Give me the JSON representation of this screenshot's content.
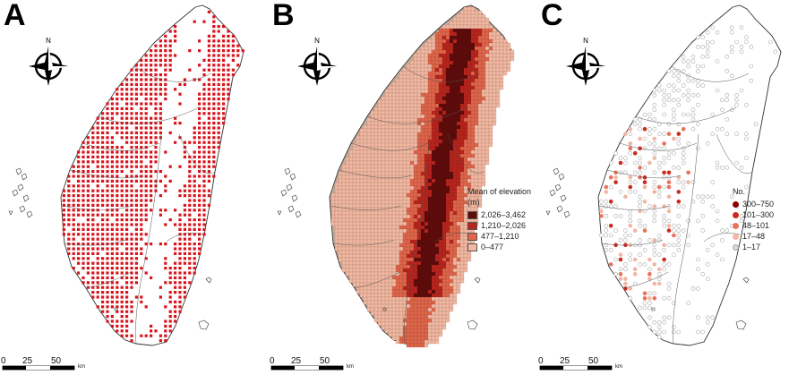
{
  "panels": [
    {
      "letter": "A",
      "compass_label": "N"
    },
    {
      "letter": "B",
      "compass_label": "N",
      "legend": {
        "title": "Mean of elevation (m)",
        "items": [
          {
            "label": "2,026–3,462",
            "color": "#5e0a0a"
          },
          {
            "label": "1,210–2,026",
            "color": "#b8231c"
          },
          {
            "label": "477–1,210",
            "color": "#e0654a"
          },
          {
            "label": "0–477",
            "color": "#f2b8a2"
          }
        ]
      }
    },
    {
      "letter": "C",
      "compass_label": "N",
      "legend": {
        "title": "No.",
        "items": [
          {
            "label": "300–750",
            "color": "#8b0000"
          },
          {
            "label": "101–300",
            "color": "#cc2a1e"
          },
          {
            "label": "48–101",
            "color": "#e8735a"
          },
          {
            "label": "17–48",
            "color": "#f2b6a4"
          },
          {
            "label": "1–17",
            "color": "#d9d9d9"
          }
        ]
      }
    }
  ],
  "scale_bar": {
    "ticks": [
      "0",
      "25",
      "50"
    ],
    "unit": "km"
  },
  "colors": {
    "grid_red": "#d8141c",
    "land_fill_b": "#c9ab97",
    "outline": "#333333"
  }
}
